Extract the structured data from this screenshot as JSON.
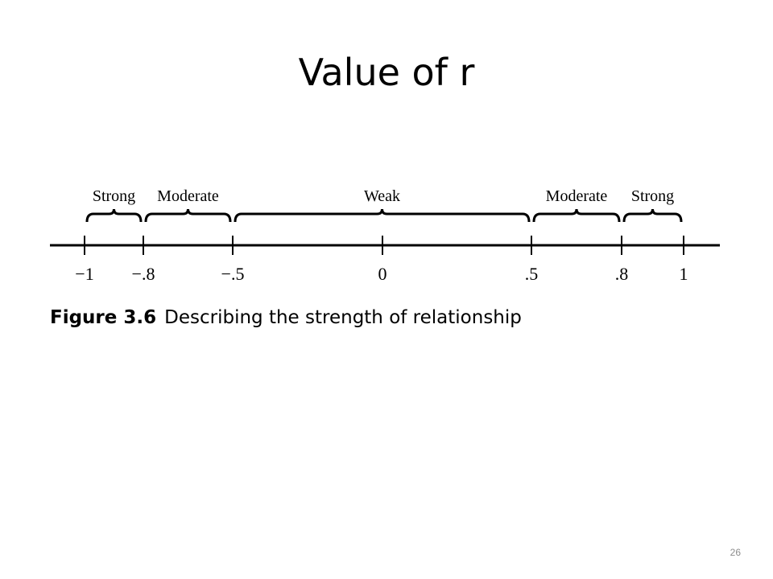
{
  "slide": {
    "title": "Value of r",
    "number": "26"
  },
  "figure": {
    "caption_label": "Figure 3.6",
    "caption_text": "Describing the strength of relationship",
    "ticks": [
      {
        "value": -1,
        "label": "−1"
      },
      {
        "value": -0.8,
        "label": "−.8"
      },
      {
        "value": -0.5,
        "label": "−.5"
      },
      {
        "value": 0,
        "label": "0"
      },
      {
        "value": 0.5,
        "label": ".5"
      },
      {
        "value": 0.8,
        "label": ".8"
      },
      {
        "value": 1,
        "label": "1"
      }
    ],
    "ranges": [
      {
        "from": -1,
        "to": -0.8,
        "label": "Strong"
      },
      {
        "from": -0.8,
        "to": -0.5,
        "label": "Moderate"
      },
      {
        "from": -0.5,
        "to": 0.5,
        "label": "Weak"
      },
      {
        "from": 0.5,
        "to": 0.8,
        "label": "Moderate"
      },
      {
        "from": 0.8,
        "to": 1,
        "label": "Strong"
      }
    ]
  }
}
